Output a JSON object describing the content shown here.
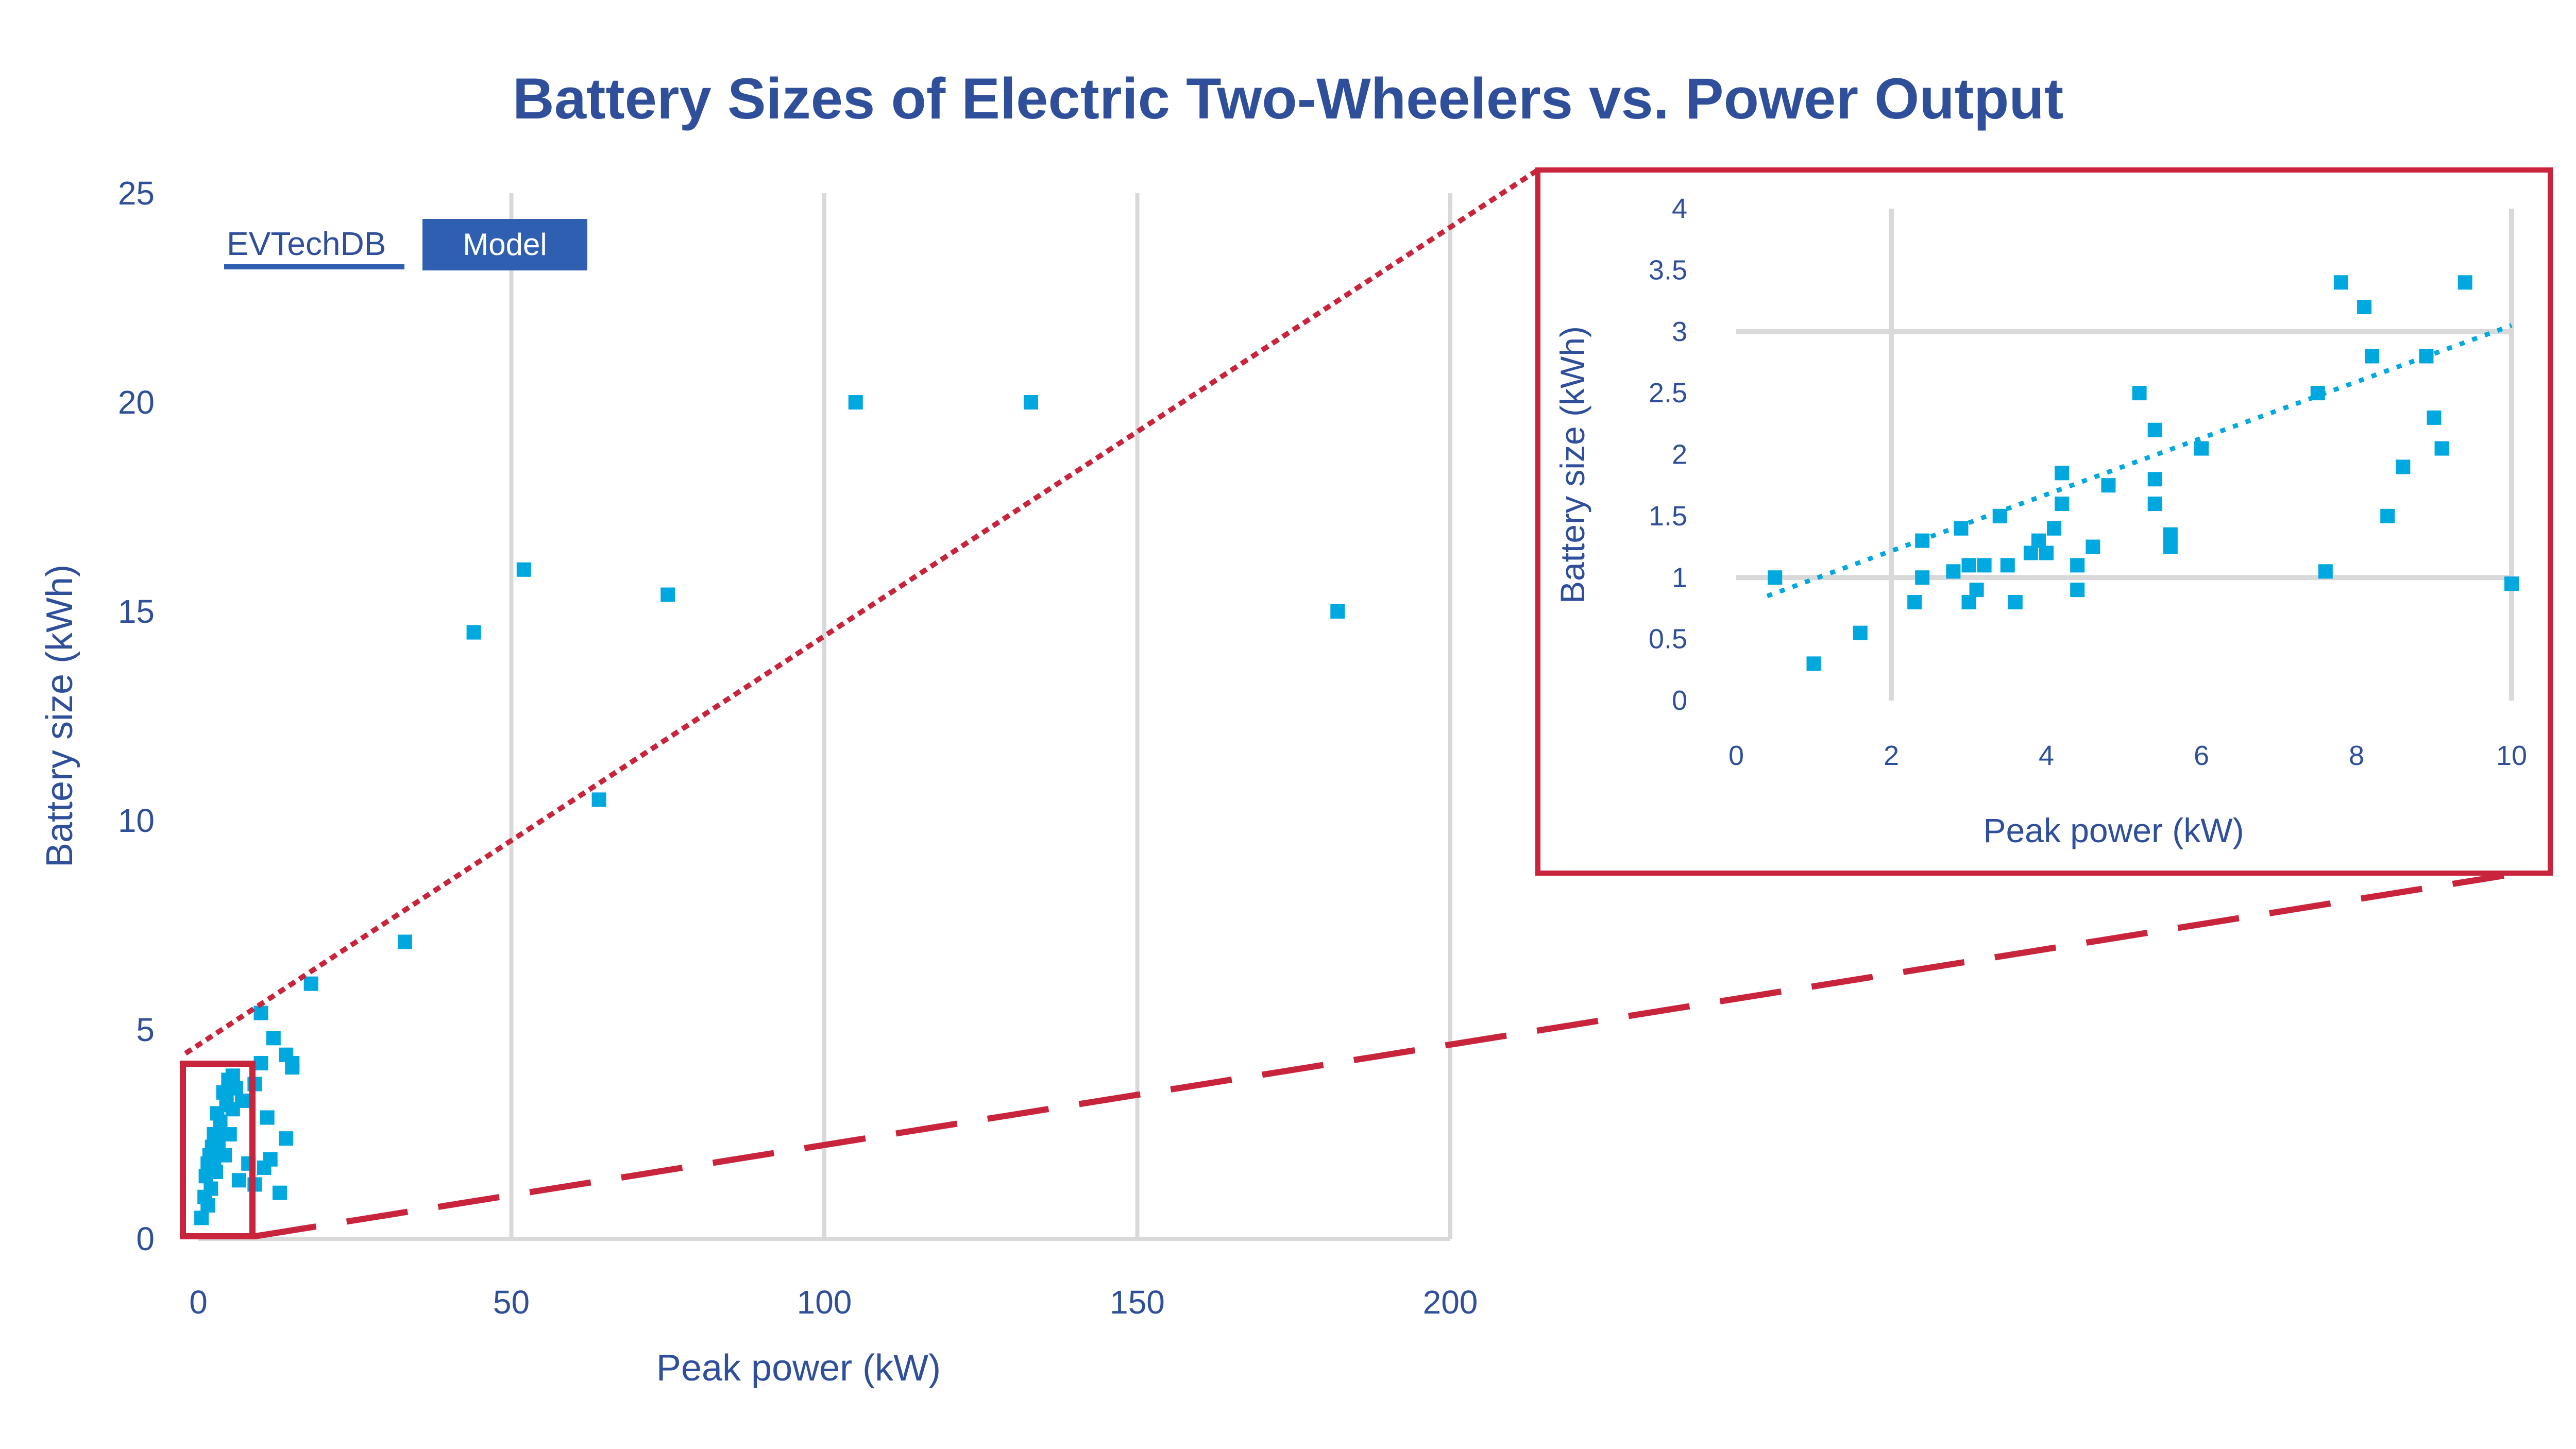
{
  "chart_data": [
    {
      "type": "scatter",
      "title": "Battery Sizes of Electric Two-Wheelers vs. Power Output",
      "xlabel": "Peak power (kW)",
      "ylabel": "Battery size (kWh)",
      "xlim": [
        0,
        200
      ],
      "ylim": [
        0,
        25
      ],
      "xticks": [
        "0",
        "50",
        "100",
        "150",
        "200"
      ],
      "yticks": [
        "0",
        "5",
        "10",
        "15",
        "20",
        "25"
      ],
      "grid": "vertical",
      "legend": {
        "placement": "top-left",
        "items": [
          "EVTechDB",
          "Model"
        ],
        "model_color": "#2f5fb0"
      },
      "point_color": "#00a8e0",
      "series": [
        {
          "x": [
            0.5,
            1,
            1.2,
            1.5,
            1.8,
            2,
            2.2,
            2.5,
            2.8,
            3,
            3.2,
            3.5,
            4,
            4.2,
            4.5,
            4.8,
            5,
            5.5,
            6,
            6.5,
            7,
            8,
            9,
            10,
            10.5,
            11,
            12,
            13,
            14,
            15,
            1.5,
            2.5,
            3.5,
            4.5,
            5.5,
            9,
            10,
            11.5,
            14,
            15,
            33,
            44,
            52,
            75,
            105,
            133,
            182,
            64,
            18
          ],
          "y": [
            0.5,
            1,
            1.5,
            1.8,
            2,
            1.2,
            2.2,
            2.5,
            1.6,
            3,
            2.3,
            2.8,
            3.5,
            2,
            3.2,
            3.8,
            2.5,
            3.1,
            3.6,
            1.4,
            3.3,
            1.8,
            3.7,
            4.2,
            1.7,
            2.9,
            4.8,
            1.1,
            4.4,
            4.2,
            0.8,
            1.9,
            2.6,
            3.3,
            3.9,
            1.3,
            5.4,
            1.9,
            2.4,
            4.1,
            7.1,
            14.5,
            16,
            15.4,
            20,
            20,
            15,
            10.5,
            6.1
          ]
        }
      ]
    },
    {
      "type": "scatter",
      "xlabel": "Peak power (kW)",
      "ylabel": "Battery size (kWh)",
      "xlim": [
        0,
        10
      ],
      "ylim": [
        0,
        4
      ],
      "xticks": [
        "0",
        "2",
        "4",
        "6",
        "8",
        "10"
      ],
      "yticks": [
        "0",
        "0.5",
        "1",
        "1.5",
        "2",
        "2.5",
        "3",
        "3.5",
        "4"
      ],
      "trendline": {
        "style": "dotted",
        "x": [
          0.4,
          10
        ],
        "y": [
          0.85,
          3.05
        ]
      },
      "point_color": "#00a8e0",
      "series": [
        {
          "x": [
            0.5,
            1,
            1.6,
            2.3,
            2.4,
            2.4,
            2.8,
            2.9,
            3.0,
            3.0,
            3.1,
            3.2,
            3.4,
            3.5,
            3.6,
            3.8,
            3.9,
            4.0,
            4.1,
            4.2,
            4.2,
            4.4,
            4.4,
            4.6,
            4.8,
            5.2,
            5.4,
            5.4,
            5.4,
            5.6,
            5.6,
            6.0,
            7.5,
            7.8,
            7.6,
            8.1,
            8.2,
            8.4,
            8.6,
            8.9,
            9.0,
            9.1,
            9.4,
            10.0
          ],
          "y": [
            1.0,
            0.3,
            0.55,
            0.8,
            1.0,
            1.3,
            1.05,
            1.4,
            0.8,
            1.1,
            0.9,
            1.1,
            1.5,
            1.1,
            0.8,
            1.2,
            1.3,
            1.2,
            1.4,
            1.6,
            1.85,
            0.9,
            1.1,
            1.25,
            1.75,
            2.5,
            2.2,
            1.6,
            1.8,
            1.35,
            1.25,
            2.05,
            2.5,
            3.4,
            1.05,
            3.2,
            2.8,
            1.5,
            1.9,
            2.8,
            2.3,
            2.05,
            3.4,
            0.95
          ]
        }
      ]
    }
  ]
}
